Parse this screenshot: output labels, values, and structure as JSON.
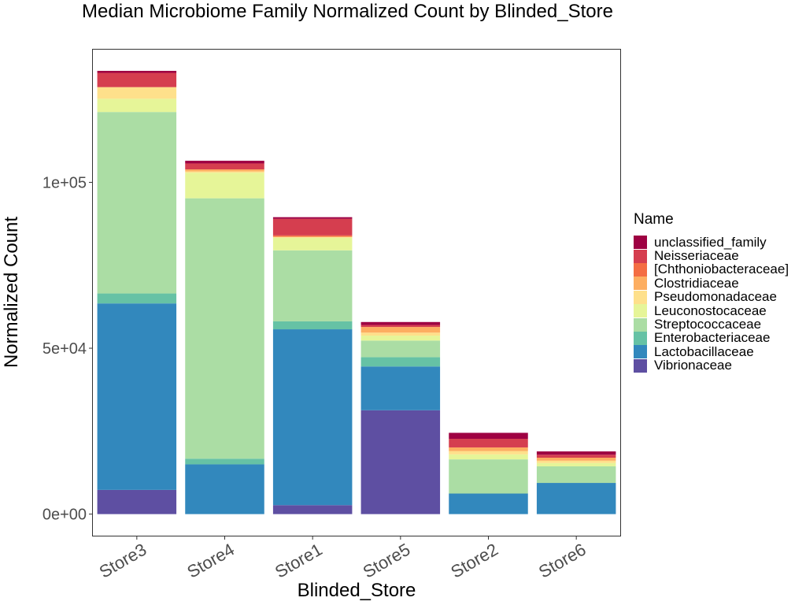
{
  "chart_data": {
    "type": "bar",
    "stacked": true,
    "title": "Median Microbiome Family Normalized Count by Blinded_Store",
    "xlabel": "Blinded_Store",
    "ylabel": "Normalized Count",
    "ylim": [
      -6500,
      140000
    ],
    "y_ticks": [
      0,
      50000,
      100000
    ],
    "y_tick_labels": [
      "0e+00",
      "5e+04",
      "1e+05"
    ],
    "categories": [
      "Store3",
      "Store4",
      "Store1",
      "Store5",
      "Store2",
      "Store6"
    ],
    "legend_title": "Name",
    "legend_position": "right",
    "grid": false,
    "series": [
      {
        "name": "Vibrionaceae",
        "color": "#5E4FA2",
        "values": [
          7300,
          0,
          2700,
          31300,
          0,
          0
        ]
      },
      {
        "name": "Lactobacillaceae",
        "color": "#3288BD",
        "values": [
          56200,
          15000,
          53000,
          13200,
          6200,
          9400
        ]
      },
      {
        "name": "Enterobacteriaceae",
        "color": "#66C2A5",
        "values": [
          3000,
          1700,
          2400,
          2800,
          0,
          0
        ]
      },
      {
        "name": "Streptococcaceae",
        "color": "#ABDDA4",
        "values": [
          54700,
          78500,
          21400,
          5000,
          10300,
          5000
        ]
      },
      {
        "name": "Leuconostocaceae",
        "color": "#E6F598",
        "values": [
          4000,
          7700,
          3800,
          1500,
          1500,
          1000
        ]
      },
      {
        "name": "Pseudomonadaceae",
        "color": "#FEE08B",
        "values": [
          3500,
          400,
          300,
          900,
          1000,
          700
        ]
      },
      {
        "name": "Clostridiaceae",
        "color": "#FDAE61",
        "values": [
          0,
          600,
          0,
          1700,
          1100,
          900
        ]
      },
      {
        "name": "[Chthoniobacteraceae]",
        "color": "#F46D43",
        "values": [
          0,
          0,
          400,
          0,
          0,
          0
        ]
      },
      {
        "name": "Neisseriaceae",
        "color": "#D53E4F",
        "values": [
          4300,
          1800,
          5000,
          600,
          2600,
          900
        ]
      },
      {
        "name": "unclassified_family",
        "color": "#9E0142",
        "values": [
          600,
          800,
          500,
          900,
          1800,
          1000
        ]
      }
    ]
  }
}
